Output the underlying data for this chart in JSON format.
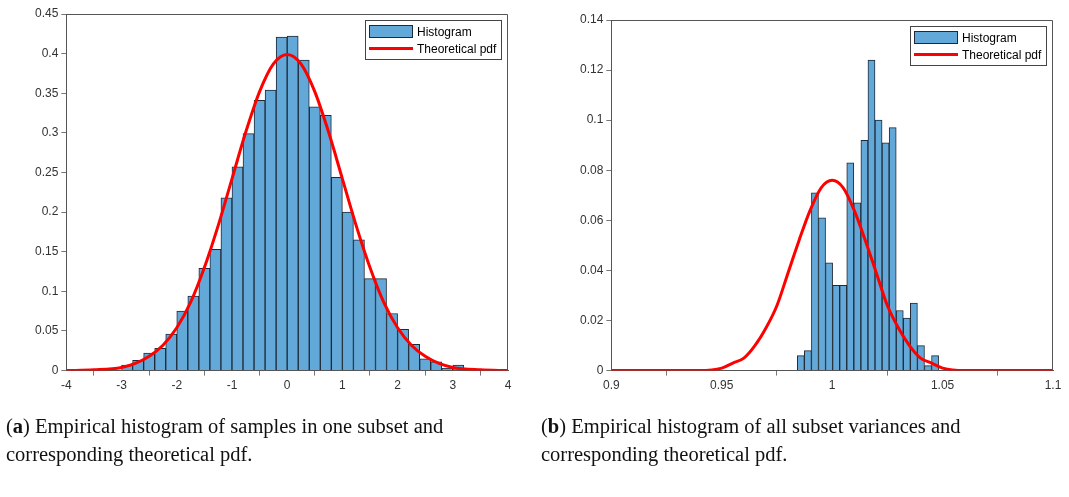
{
  "chart_data": [
    {
      "type": "histogram",
      "xlim": [
        -4,
        4
      ],
      "xticks": [
        -4,
        -3,
        -2,
        -1,
        0,
        1,
        2,
        3,
        4
      ],
      "ylim": [
        0,
        0.45
      ],
      "yticks": [
        0,
        0.05,
        0.1,
        0.15,
        0.2,
        0.25,
        0.3,
        0.35,
        0.4,
        0.45
      ],
      "grid": false,
      "legend": "top right",
      "marker": "none",
      "series": [
        {
          "name": "Histogram",
          "color": "#62a8d8",
          "bins": [
            -3,
            -2.8,
            -2.6,
            -2.4,
            -2.2,
            -2,
            -1.8,
            -1.6,
            -1.4,
            -1.2,
            -1,
            -0.8,
            -0.6,
            -0.4,
            -0.2,
            0,
            0.2,
            0.4,
            0.6,
            0.8,
            1,
            1.2,
            1.4,
            1.6,
            1.8,
            2,
            2.2,
            2.4,
            2.6,
            2.8,
            3,
            3.2
          ],
          "values": [
            0.007,
            0.013,
            0.022,
            0.028,
            0.046,
            0.075,
            0.094,
            0.129,
            0.153,
            0.218,
            0.257,
            0.299,
            0.341,
            0.354,
            0.421,
            0.422,
            0.392,
            0.333,
            0.322,
            0.244,
            0.2,
            0.165,
            0.116,
            0.116,
            0.072,
            0.052,
            0.033,
            0.015,
            0.011,
            0.003,
            0.007
          ]
        },
        {
          "type": "line",
          "name": "Theoretical pdf",
          "color": "#ff0000",
          "x": [
            -4,
            -3.5,
            -3,
            -2.75,
            -2.5,
            -2.25,
            -2,
            -1.75,
            -1.5,
            -1.25,
            -1,
            -0.75,
            -0.5,
            -0.25,
            0,
            0.25,
            0.5,
            0.75,
            1,
            1.25,
            1.5,
            1.75,
            2,
            2.25,
            2.5,
            2.75,
            3,
            3.5,
            4
          ],
          "values": [
            0,
            0.001,
            0.004,
            0.009,
            0.018,
            0.032,
            0.054,
            0.086,
            0.13,
            0.183,
            0.242,
            0.301,
            0.352,
            0.387,
            0.399,
            0.387,
            0.352,
            0.301,
            0.242,
            0.183,
            0.13,
            0.086,
            0.054,
            0.032,
            0.018,
            0.009,
            0.004,
            0.001,
            0
          ]
        }
      ],
      "annotations": [
        "(a) Empirical histogram of samples in one subset and corresponding theoretical pdf."
      ]
    },
    {
      "type": "histogram",
      "xlim": [
        0.9,
        1.1
      ],
      "xticks": [
        0.9,
        0.95,
        1,
        1.05,
        1.1
      ],
      "ylim": [
        0,
        0.14
      ],
      "yticks": [
        0,
        0.02,
        0.04,
        0.06,
        0.08,
        0.1,
        0.12,
        0.14
      ],
      "grid": false,
      "legend": "top right",
      "marker": "none",
      "series": [
        {
          "name": "Histogram",
          "color": "#62a8d8",
          "bins": [
            0.9842,
            0.9874,
            0.9906,
            0.9938,
            0.997,
            1.0002,
            1.0034,
            1.0066,
            1.0098,
            1.013,
            1.0162,
            1.0194,
            1.0226,
            1.0258,
            1.029,
            1.0322,
            1.0354,
            1.0386,
            1.0418,
            1.045,
            1.0482
          ],
          "values": [
            0.006,
            0.008,
            0.071,
            0.061,
            0.043,
            0.034,
            0.034,
            0.083,
            0.067,
            0.092,
            0.124,
            0.1,
            0.091,
            0.097,
            0.024,
            0.021,
            0.027,
            0.01,
            0.002,
            0.006
          ]
        },
        {
          "type": "line",
          "name": "Theoretical pdf",
          "color": "#ff0000",
          "x": [
            0.9,
            0.92,
            0.94,
            0.95,
            0.955,
            0.96,
            0.965,
            0.97,
            0.975,
            0.98,
            0.985,
            0.99,
            0.995,
            1,
            1.005,
            1.01,
            1.015,
            1.02,
            1.025,
            1.03,
            1.035,
            1.04,
            1.045,
            1.05,
            1.06,
            1.08,
            1.1
          ],
          "values": [
            0,
            0,
            0,
            0.001,
            0.003,
            0.005,
            0.01,
            0.017,
            0.026,
            0.039,
            0.052,
            0.064,
            0.073,
            0.076,
            0.073,
            0.064,
            0.052,
            0.039,
            0.026,
            0.017,
            0.01,
            0.005,
            0.003,
            0.001,
            0,
            0,
            0
          ]
        }
      ],
      "annotations": [
        "(b) Empirical histogram of all subset variances and corresponding theoretical pdf."
      ]
    }
  ]
}
